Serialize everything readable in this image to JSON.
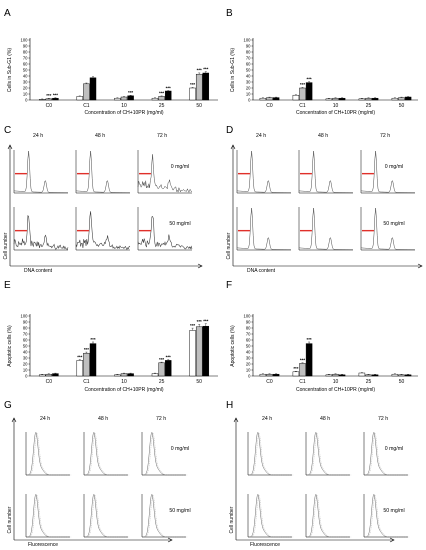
{
  "panels": {
    "A": "A",
    "B": "B",
    "C": "C",
    "D": "D",
    "E": "E",
    "F": "F",
    "G": "G",
    "H": "H"
  },
  "bar_common": {
    "xlabel": "Concentration of CH+10PR (mg/ml)",
    "categories": [
      "C0",
      "C1",
      "10",
      "25",
      "50"
    ],
    "series_colors": [
      "#ffffff",
      "#bfbfbf",
      "#000000"
    ]
  },
  "hist_common": {
    "times": [
      "24 h",
      "48 h",
      "72 h"
    ],
    "dose_low": "0 mg/ml",
    "dose_high": "50 mg/ml",
    "ylabel": "Cell number",
    "xlabel_cc": "DNA content",
    "xlabel_fl": "Fluorescence",
    "marker_color": "#e0302a"
  },
  "chart_data": [
    {
      "panel": "A",
      "type": "bar",
      "ylabel": "Cells in Sub-G1 (%)",
      "yticks": [
        0,
        10,
        20,
        30,
        40,
        50,
        60,
        70,
        80,
        90,
        100
      ],
      "ylim": [
        0,
        100
      ],
      "categories": [
        "C0",
        "C1",
        "10",
        "25",
        "50"
      ],
      "series": [
        {
          "values": [
            1,
            6,
            3,
            3,
            20
          ]
        },
        {
          "values": [
            2,
            27,
            5,
            6,
            43
          ]
        },
        {
          "values": [
            3,
            37,
            7,
            15,
            45
          ]
        }
      ],
      "sig": [
        [
          null,
          "***",
          "***"
        ],
        [
          null,
          null,
          null
        ],
        [
          null,
          null,
          "***"
        ],
        [
          null,
          "***",
          "***"
        ],
        [
          "***",
          "***",
          "***"
        ]
      ]
    },
    {
      "panel": "B",
      "type": "bar",
      "ylabel": "Cells in Sub-G1 (%)",
      "yticks": [
        0,
        10,
        20,
        30,
        40,
        50,
        60,
        70,
        80,
        90,
        100
      ],
      "ylim": [
        0,
        100
      ],
      "categories": [
        "C0",
        "C1",
        "10",
        "25",
        "50"
      ],
      "series": [
        {
          "values": [
            3,
            8,
            2,
            2,
            3
          ]
        },
        {
          "values": [
            4,
            20,
            3,
            3,
            4
          ]
        },
        {
          "values": [
            4,
            29,
            3,
            3,
            5
          ]
        }
      ],
      "sig": [
        [
          null,
          null,
          null
        ],
        [
          null,
          "***",
          "***"
        ],
        [
          null,
          null,
          null
        ],
        [
          null,
          null,
          null
        ],
        [
          null,
          null,
          null
        ]
      ]
    },
    {
      "panel": "E",
      "type": "bar",
      "ylabel": "Apoptotic cells (%)",
      "yticks": [
        0,
        10,
        20,
        30,
        40,
        50,
        60,
        70,
        80,
        90,
        100
      ],
      "ylim": [
        0,
        100
      ],
      "categories": [
        "C0",
        "C1",
        "10",
        "25",
        "50"
      ],
      "series": [
        {
          "values": [
            2,
            26,
            2,
            4,
            76
          ]
        },
        {
          "values": [
            3,
            38,
            4,
            22,
            82
          ]
        },
        {
          "values": [
            4,
            54,
            4,
            26,
            83
          ]
        }
      ],
      "sig": [
        [
          null,
          null,
          null
        ],
        [
          "***",
          "***",
          "***"
        ],
        [
          null,
          null,
          null
        ],
        [
          null,
          "***",
          "***"
        ],
        [
          "***",
          "***",
          "***"
        ]
      ]
    },
    {
      "panel": "F",
      "type": "bar",
      "ylabel": "Apoptotic cells (%)",
      "yticks": [
        0,
        10,
        20,
        30,
        40,
        50,
        60,
        70,
        80,
        90,
        100
      ],
      "ylim": [
        0,
        100
      ],
      "categories": [
        "C0",
        "C1",
        "10",
        "25",
        "50"
      ],
      "series": [
        {
          "values": [
            3,
            7,
            2,
            5,
            3
          ]
        },
        {
          "values": [
            3,
            21,
            3,
            2,
            2
          ]
        },
        {
          "values": [
            3,
            54,
            2,
            2,
            2
          ]
        }
      ],
      "sig": [
        [
          null,
          null,
          null
        ],
        [
          "***",
          "***",
          "***"
        ],
        [
          null,
          null,
          null
        ],
        [
          null,
          null,
          null
        ],
        [
          null,
          null,
          null
        ]
      ]
    },
    {
      "panel": "C",
      "type": "histogram",
      "style": "cell-cycle-rough",
      "xlabel": "DNA content",
      "ylabel": "Cell number"
    },
    {
      "panel": "D",
      "type": "histogram",
      "style": "cell-cycle",
      "xlabel": "DNA content",
      "ylabel": "Cell number"
    },
    {
      "panel": "G",
      "type": "histogram",
      "style": "fluorescence",
      "xlabel": "Fluorescence",
      "ylabel": "Cell number"
    },
    {
      "panel": "H",
      "type": "histogram",
      "style": "fluorescence",
      "xlabel": "Fluorescence",
      "ylabel": "Cell number"
    }
  ]
}
